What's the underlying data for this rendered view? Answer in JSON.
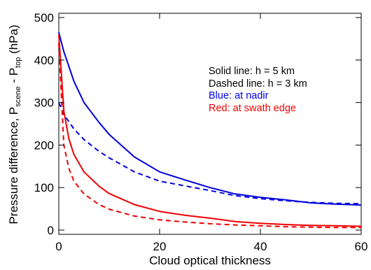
{
  "chart_data": {
    "type": "line",
    "xlabel": "Cloud optical thickness",
    "ylabel": {
      "main": "Pressure difference, P",
      "sub1": "scene",
      "mid": " - P",
      "sub2": "top",
      "end": " (hPa)"
    },
    "xlim": [
      0,
      60
    ],
    "ylim": [
      -10,
      510
    ],
    "x_ticks": [
      0,
      20,
      40,
      60
    ],
    "y_ticks": [
      0,
      100,
      200,
      300,
      400,
      500
    ],
    "grid": false,
    "annotations": [
      {
        "text": "Solid line: h = 5 km",
        "color": "#000000"
      },
      {
        "text": "Dashed line: h = 3 km",
        "color": "#000000"
      },
      {
        "text": "Blue: at nadir",
        "color": "#0000ee"
      },
      {
        "text": "Red: at swath edge",
        "color": "#ee0000"
      }
    ],
    "series": [
      {
        "color": "#0000dd",
        "dash": "solid",
        "x": [
          0,
          1,
          3,
          5,
          8,
          10,
          15,
          20,
          25,
          30,
          35,
          40,
          45,
          50,
          55,
          60
        ],
        "y": [
          465,
          420,
          350,
          300,
          253,
          225,
          172,
          137,
          118,
          100,
          85,
          77,
          71,
          64,
          61,
          59
        ]
      },
      {
        "color": "#0000dd",
        "dash": "dashed",
        "x": [
          0,
          1,
          3,
          5,
          8,
          10,
          15,
          20,
          25,
          30,
          35,
          40,
          45,
          50,
          55,
          60
        ],
        "y": [
          300,
          272,
          238,
          213,
          185,
          170,
          137,
          115,
          104,
          93,
          81,
          74,
          69,
          65,
          63,
          62
        ]
      },
      {
        "color": "#ee0000",
        "dash": "solid",
        "x": [
          0,
          1,
          2,
          3,
          5,
          8,
          10,
          15,
          20,
          25,
          30,
          35,
          40,
          45,
          50,
          55,
          60
        ],
        "y": [
          460,
          280,
          215,
          178,
          137,
          103,
          86,
          60,
          44,
          35,
          28,
          20,
          16,
          13,
          11,
          10,
          9
        ]
      },
      {
        "color": "#ee0000",
        "dash": "dashed",
        "x": [
          0,
          1,
          2,
          3,
          5,
          8,
          10,
          15,
          20,
          25,
          30,
          35,
          40,
          45,
          50,
          55,
          60
        ],
        "y": [
          440,
          200,
          145,
          115,
          85,
          60,
          49,
          33,
          24,
          19,
          15,
          12,
          10,
          8,
          7,
          6,
          6
        ]
      }
    ]
  }
}
